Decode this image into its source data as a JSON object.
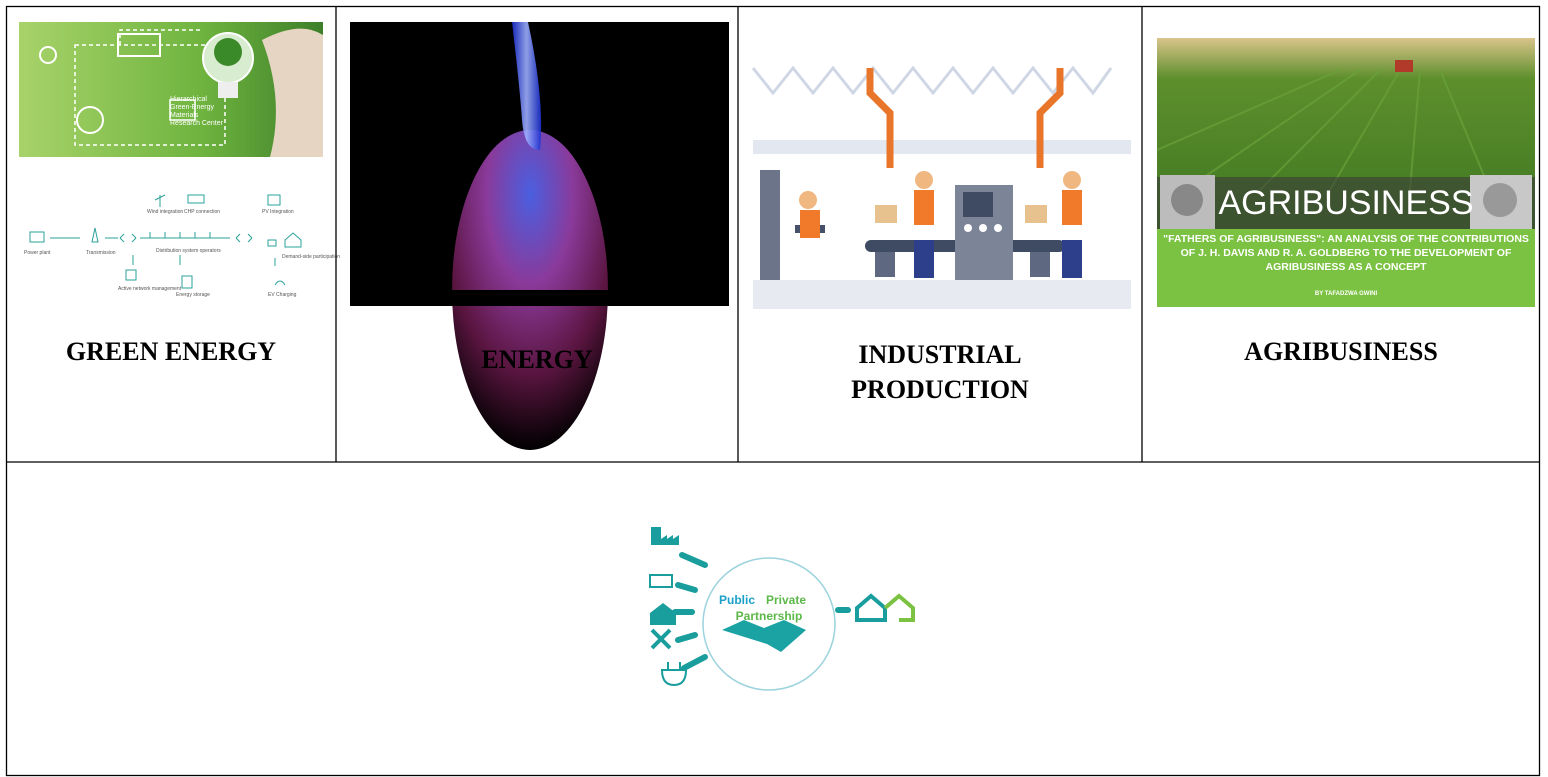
{
  "cells": [
    {
      "title": "GREEN ENERGY",
      "image_text": "Hierarchical Green-Energy Materials Research Center",
      "diagram_labels": [
        "Wind integration",
        "CHP connection",
        "PV Integration",
        "Power plant",
        "Transmission",
        "Distribution system operators",
        "Demand-side participation",
        "Active network management",
        "Energy storage",
        "EV Charging"
      ]
    },
    {
      "title": "ENERGY"
    },
    {
      "title": "INDUSTRIAL PRODUCTION"
    },
    {
      "title": "AGRIBUSINESS",
      "image_heading": "AGRIBUSINESS",
      "image_caption": "\"FATHERS OF AGRIBUSINESS\": AN ANALYSIS OF THE CONTRIBUTIONS OF J. H. DAVIS AND R. A. GOLDBERG TO THE DEVELOPMENT OF AGRIBUSINESS AS A CONCEPT",
      "image_byline": "BY TAFADZWA GWINI"
    }
  ],
  "partnership": {
    "public": "Public",
    "private": "Private",
    "label": "Partnership"
  }
}
